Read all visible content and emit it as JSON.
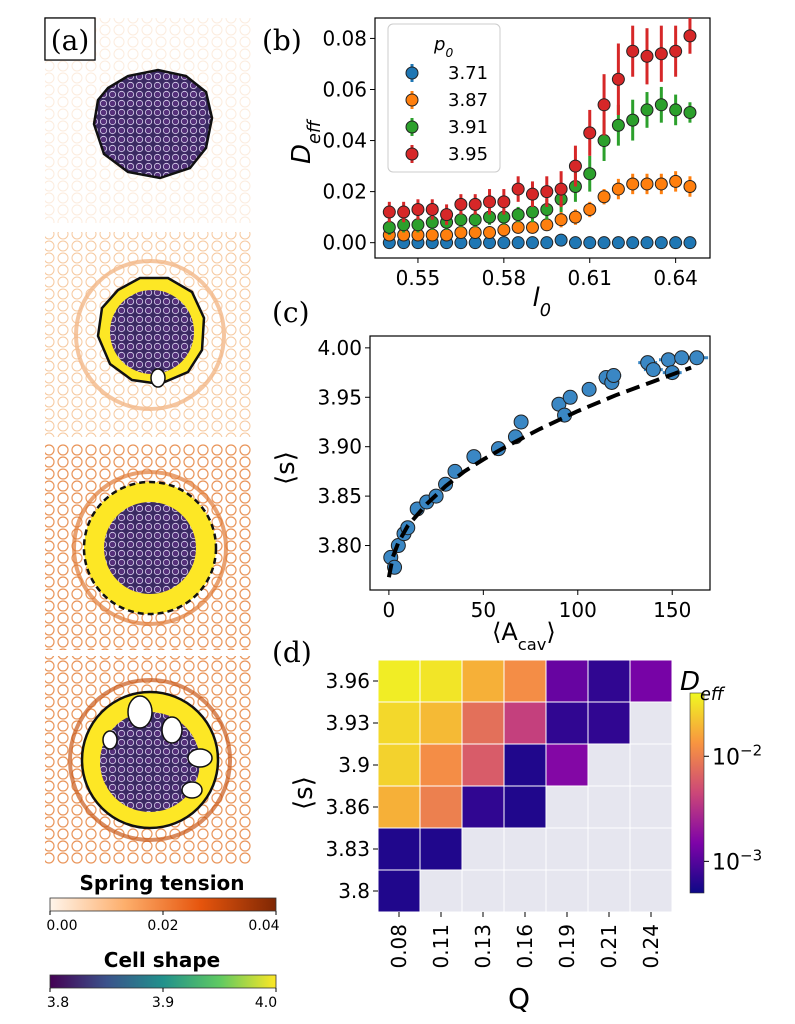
{
  "panel_labels": {
    "a": "(a)",
    "b": "(b)",
    "c": "(c)",
    "d": "(d)"
  },
  "colorbars": {
    "spring_tension": {
      "title": "Spring tension",
      "ticks": [
        "0.00",
        "0.02",
        "0.04"
      ],
      "colors": [
        "#fff5eb",
        "#fdae6b",
        "#e6550d",
        "#7f2704"
      ]
    },
    "cell_shape": {
      "title": "Cell shape",
      "ticks": [
        "3.8",
        "3.9",
        "4.0"
      ],
      "colors": [
        "#440154",
        "#3b528b",
        "#21918c",
        "#5ec962",
        "#fde725"
      ]
    },
    "deff": {
      "title": "D",
      "title_sub": "eff",
      "ticks": [
        {
          "base": "10",
          "exp": "−2"
        },
        {
          "base": "10",
          "exp": "−3"
        }
      ],
      "colors": [
        "#0d0887",
        "#7e03a8",
        "#cc4778",
        "#f89540",
        "#f0f921"
      ]
    }
  },
  "chart_data": [
    {
      "panel": "(b)",
      "type": "scatter",
      "xlabel": "l",
      "xlabel_sub": "0",
      "ylabel": "D",
      "ylabel_sub": "eff",
      "xlim": [
        0.535,
        0.652
      ],
      "ylim": [
        -0.006,
        0.088
      ],
      "xticks": [
        "0.55",
        "0.58",
        "0.61",
        "0.64"
      ],
      "xtick_values": [
        0.55,
        0.58,
        0.61,
        0.64
      ],
      "yticks": [
        "0.00",
        "0.02",
        "0.04",
        "0.06",
        "0.08"
      ],
      "ytick_values": [
        0,
        0.02,
        0.04,
        0.06,
        0.08
      ],
      "legend_title": "p",
      "legend_title_sub": "0",
      "legend_position": "upper-left",
      "x": [
        0.54,
        0.545,
        0.55,
        0.555,
        0.56,
        0.565,
        0.57,
        0.575,
        0.58,
        0.585,
        0.59,
        0.595,
        0.6,
        0.605,
        0.61,
        0.615,
        0.62,
        0.625,
        0.63,
        0.635,
        0.64,
        0.645
      ],
      "series": [
        {
          "name": "3.71",
          "color": "#1f77b4",
          "values": [
            0.0,
            0.0,
            0.0,
            0.0,
            0.0,
            0.0,
            0.0,
            0.0,
            0.0,
            0.0,
            0.0,
            0.0,
            0.001,
            0.0,
            0.0,
            0.0,
            0.0,
            0.0,
            0.0,
            0.0,
            0.0,
            0.0
          ],
          "errors": [
            0.001,
            0.001,
            0.001,
            0.001,
            0.001,
            0.001,
            0.001,
            0.001,
            0.001,
            0.001,
            0.001,
            0.001,
            0.002,
            0.001,
            0.001,
            0.001,
            0.001,
            0.001,
            0.001,
            0.001,
            0.001,
            0.001
          ]
        },
        {
          "name": "3.87",
          "color": "#ff7f0e",
          "values": [
            0.003,
            0.003,
            0.003,
            0.003,
            0.003,
            0.004,
            0.004,
            0.004,
            0.005,
            0.006,
            0.006,
            0.007,
            0.009,
            0.01,
            0.013,
            0.018,
            0.021,
            0.023,
            0.023,
            0.023,
            0.024,
            0.022
          ],
          "errors": [
            0.002,
            0.002,
            0.002,
            0.002,
            0.002,
            0.002,
            0.002,
            0.002,
            0.002,
            0.002,
            0.002,
            0.002,
            0.003,
            0.003,
            0.003,
            0.003,
            0.004,
            0.004,
            0.004,
            0.004,
            0.004,
            0.004
          ]
        },
        {
          "name": "3.91",
          "color": "#2ca02c",
          "values": [
            0.006,
            0.007,
            0.007,
            0.008,
            0.008,
            0.009,
            0.009,
            0.01,
            0.01,
            0.011,
            0.012,
            0.013,
            0.017,
            0.022,
            0.027,
            0.04,
            0.046,
            0.048,
            0.052,
            0.054,
            0.052,
            0.051
          ],
          "errors": [
            0.003,
            0.003,
            0.003,
            0.003,
            0.003,
            0.003,
            0.003,
            0.003,
            0.003,
            0.003,
            0.004,
            0.004,
            0.005,
            0.006,
            0.007,
            0.008,
            0.008,
            0.008,
            0.007,
            0.007,
            0.006,
            0.004
          ]
        },
        {
          "name": "3.95",
          "color": "#d62728",
          "values": [
            0.012,
            0.012,
            0.013,
            0.013,
            0.011,
            0.015,
            0.015,
            0.016,
            0.016,
            0.021,
            0.019,
            0.02,
            0.021,
            0.03,
            0.043,
            0.054,
            0.064,
            0.075,
            0.073,
            0.074,
            0.075,
            0.081
          ],
          "errors": [
            0.004,
            0.004,
            0.004,
            0.004,
            0.004,
            0.004,
            0.004,
            0.005,
            0.005,
            0.005,
            0.005,
            0.006,
            0.007,
            0.008,
            0.009,
            0.012,
            0.014,
            0.01,
            0.011,
            0.011,
            0.01,
            0.007
          ]
        }
      ]
    },
    {
      "panel": "(c)",
      "type": "scatter",
      "xlabel": "⟨A",
      "xlabel_sub": "cav",
      "xlabel_end": "⟩",
      "ylabel": "⟨s⟩",
      "xlim": [
        -10,
        170
      ],
      "ylim": [
        3.755,
        4.012
      ],
      "xticks": [
        "0",
        "50",
        "100",
        "150"
      ],
      "xtick_values": [
        0,
        50,
        100,
        150
      ],
      "yticks": [
        "3.80",
        "3.85",
        "3.90",
        "3.95",
        "4.00"
      ],
      "ytick_values": [
        3.8,
        3.85,
        3.9,
        3.95,
        4.0
      ],
      "points": {
        "color": "#3a87c4",
        "x": [
          1,
          3,
          5,
          8,
          10,
          15,
          20,
          25,
          30,
          35,
          45,
          58,
          67,
          70,
          90,
          93,
          96,
          106,
          115,
          118,
          119,
          137,
          140,
          148,
          150,
          155,
          163
        ],
        "y": [
          3.788,
          3.778,
          3.8,
          3.812,
          3.818,
          3.837,
          3.844,
          3.85,
          3.862,
          3.875,
          3.89,
          3.898,
          3.91,
          3.925,
          3.943,
          3.932,
          3.95,
          3.958,
          3.97,
          3.965,
          3.972,
          3.985,
          3.978,
          3.988,
          3.975,
          3.99,
          3.99
        ],
        "xerr": [
          1,
          1,
          1,
          1,
          1,
          1,
          1,
          1,
          1,
          1,
          1,
          1,
          1,
          1,
          2,
          2,
          2,
          2,
          4,
          4,
          4,
          5,
          5,
          5,
          5,
          6,
          6
        ]
      },
      "fit": {
        "style": "dashed",
        "color": "#000000",
        "x": [
          0,
          2,
          5,
          10,
          20,
          30,
          40,
          50,
          60,
          70,
          80,
          90,
          100,
          110,
          120,
          130,
          140,
          150,
          160
        ],
        "y": [
          3.768,
          3.788,
          3.803,
          3.82,
          3.842,
          3.86,
          3.875,
          3.887,
          3.898,
          3.908,
          3.918,
          3.927,
          3.936,
          3.944,
          3.952,
          3.959,
          3.966,
          3.973,
          3.98
        ]
      }
    },
    {
      "panel": "(d)",
      "type": "heatmap",
      "xlabel": "Q",
      "ylabel": "⟨s⟩",
      "xticks": [
        "0.08",
        "0.11",
        "0.13",
        "0.16",
        "0.19",
        "0.21",
        "0.24"
      ],
      "yticks": [
        "3.96",
        "3.93",
        "3.9",
        "3.86",
        "3.83",
        "3.8"
      ],
      "color_scale": "log",
      "clim": [
        0.0005,
        0.04
      ],
      "missing_color": "#e6e6ef",
      "values": [
        [
          0.035,
          0.032,
          0.018,
          0.012,
          0.0012,
          0.0007,
          0.0014
        ],
        [
          0.028,
          0.02,
          0.008,
          0.004,
          0.0007,
          0.0007,
          null
        ],
        [
          0.026,
          0.012,
          0.006,
          0.0006,
          0.0016,
          null,
          null
        ],
        [
          0.018,
          0.01,
          0.0007,
          0.0006,
          null,
          null,
          null
        ],
        [
          0.0006,
          0.0006,
          null,
          null,
          null,
          null,
          null
        ],
        [
          0.0006,
          null,
          null,
          null,
          null,
          null,
          null
        ]
      ]
    }
  ]
}
